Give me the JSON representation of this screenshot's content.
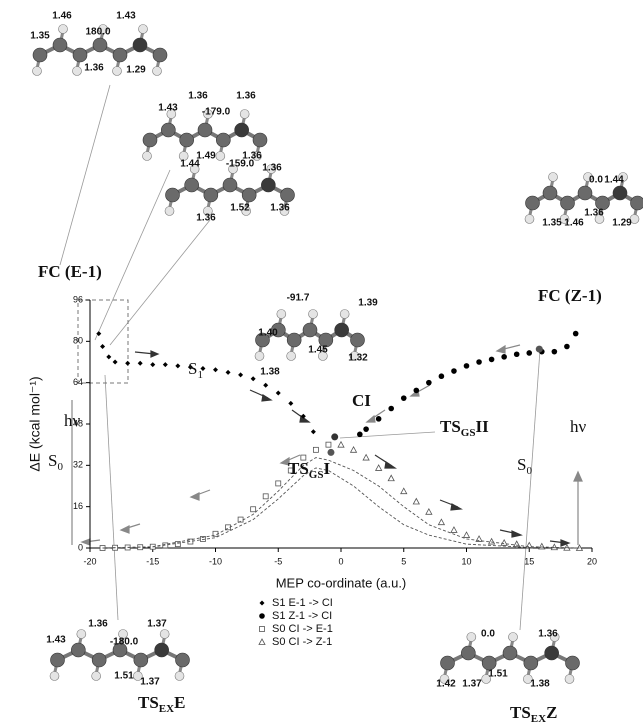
{
  "chart_data": {
    "type": "scatter",
    "xlabel": "MEP co-ordinate (a.u.)",
    "ylabel": "ΔE (kcal mol⁻¹)",
    "xlim": [
      -20,
      20
    ],
    "xticks": [
      -20,
      -15,
      -10,
      -5,
      0,
      5,
      10,
      15,
      20
    ],
    "ylim": [
      0,
      96
    ],
    "yticks": [
      0,
      16,
      32,
      48,
      64,
      80,
      96
    ],
    "series": [
      {
        "name": "S1 E-1 -> CI",
        "marker": "diamond",
        "color": "#000000",
        "x": [
          -19.3,
          -19,
          -18.5,
          -18,
          -17,
          -16,
          -15,
          -14,
          -13,
          -12,
          -11,
          -10,
          -9,
          -8,
          -7,
          -6,
          -5,
          -4,
          -3,
          -2.2
        ],
        "values": [
          83,
          78,
          74,
          72,
          71.5,
          71.5,
          71,
          71,
          70.5,
          70,
          69.5,
          69,
          68,
          67,
          65.5,
          63,
          60,
          56,
          51,
          45
        ]
      },
      {
        "name": "S1 Z-1 -> CI",
        "marker": "circle",
        "color": "#000000",
        "x": [
          1.5,
          2,
          3,
          4,
          5,
          6,
          7,
          8,
          9,
          10,
          11,
          12,
          13,
          14,
          15,
          16,
          17,
          18,
          18.7
        ],
        "values": [
          44,
          46,
          50,
          54,
          58,
          61,
          64,
          66.5,
          68.5,
          70.5,
          72,
          73,
          74,
          75,
          75.5,
          76,
          76,
          78,
          83
        ]
      },
      {
        "name": "S0 CI -> E-1",
        "marker": "square",
        "color": "#555555",
        "x": [
          -1,
          -2,
          -3,
          -4,
          -5,
          -6,
          -7,
          -8,
          -9,
          -10,
          -11,
          -12,
          -13,
          -14,
          -15,
          -16,
          -17,
          -18,
          -19
        ],
        "values": [
          40,
          38,
          35,
          30,
          25,
          20,
          15,
          11,
          8,
          5.5,
          3.5,
          2.5,
          1.5,
          1,
          0.5,
          0.3,
          0.2,
          0.1,
          0
        ]
      },
      {
        "name": "S0 CI -> Z-1",
        "marker": "triangle",
        "color": "#555555",
        "x": [
          0,
          1,
          2,
          3,
          4,
          5,
          6,
          7,
          8,
          9,
          10,
          11,
          12,
          13,
          14,
          15,
          16,
          17,
          18,
          19
        ],
        "values": [
          40,
          38,
          35,
          31,
          27,
          22,
          18,
          14,
          10,
          7,
          5,
          3.5,
          2.5,
          2,
          1.5,
          1,
          0.6,
          0.3,
          0.1,
          0
        ]
      },
      {
        "marker": "dashed",
        "color": "#555555",
        "x": [
          -19,
          -15,
          -10,
          -7,
          -5,
          -3,
          -2,
          -1,
          1,
          3,
          5,
          7,
          10,
          15,
          19
        ],
        "values": [
          0,
          0.5,
          5,
          13,
          22,
          32,
          35,
          34,
          30,
          24,
          16,
          9,
          3.5,
          0.5,
          0
        ]
      },
      {
        "marker": "dashed",
        "color": "#555555",
        "x": [
          -19,
          -15,
          -10,
          -7,
          -5,
          -3,
          -2,
          -1,
          1,
          3,
          5,
          7,
          10,
          15,
          19
        ],
        "values": [
          0,
          0.4,
          4,
          11,
          19,
          28,
          31,
          30,
          24,
          16,
          9,
          5,
          1.5,
          0.2,
          0
        ]
      }
    ],
    "points": [
      {
        "x": -0.5,
        "y": 43,
        "color": "#333333"
      },
      {
        "x": -0.8,
        "y": 37,
        "color": "#555555"
      },
      {
        "x": 15.8,
        "y": 77,
        "color": "#555555"
      }
    ],
    "annotations": [
      {
        "text": "FC (E-1)"
      },
      {
        "text": "FC (Z-1)"
      },
      {
        "text": "S",
        "sub": "1"
      },
      {
        "text": "S",
        "sub": "0"
      },
      {
        "text": "S",
        "sub": "0"
      },
      {
        "text": "CI"
      },
      {
        "text": "TS",
        "sub": "GS",
        "rest": "II"
      },
      {
        "text": "TS",
        "sub": "GS",
        "rest": "I"
      },
      {
        "text": "hν"
      },
      {
        "text": "hν"
      },
      {
        "text": "TS",
        "sub": "EX",
        "rest": "E"
      },
      {
        "text": "TS",
        "sub": "EX",
        "rest": "Z"
      }
    ],
    "molecules": [
      [
        "1.46",
        "1.43",
        "1.35",
        "180.0",
        "1.36",
        "1.29"
      ],
      [
        "1.36",
        "1.36",
        "1.43",
        "-179.0",
        "1.49",
        "1.36"
      ],
      [
        "1.44",
        "-159.0",
        "1.36",
        "1.36",
        "1.52",
        "1.36"
      ],
      [
        "0.0",
        "1.44",
        "1.36",
        "1.35",
        "1.46",
        "1.29"
      ],
      [
        "-91.7",
        "1.39",
        "1.40",
        "1.45",
        "1.38",
        "1.32"
      ],
      [
        "1.36",
        "1.37",
        "1.43",
        "-180.0",
        "1.51",
        "1.37"
      ],
      [
        "0.0",
        "1.36",
        "1.42",
        "1.37",
        "1.51",
        "1.38"
      ]
    ]
  }
}
